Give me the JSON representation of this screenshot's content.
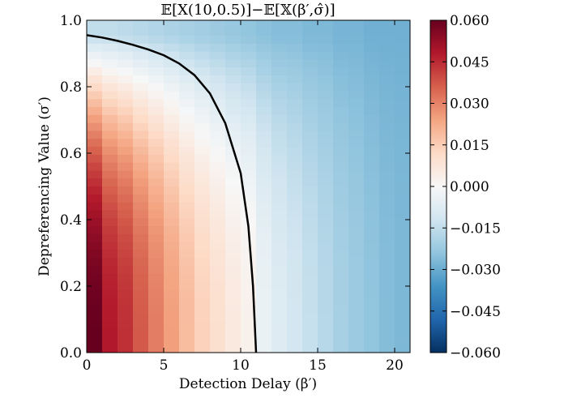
{
  "chart_data": {
    "type": "heatmap",
    "title": "𝔼[X(10,0.5)]−𝔼[𝕏(β′,σ̂)]",
    "xlabel": "Detection Delay (β′)",
    "ylabel": "Depreferencing Value (σ′)",
    "xlim": [
      0,
      21
    ],
    "ylim": [
      0,
      1
    ],
    "x_ticks": [
      "0",
      "5",
      "10",
      "15",
      "20"
    ],
    "y_ticks": [
      "0.0",
      "0.2",
      "0.4",
      "0.6",
      "0.8",
      "1.0"
    ],
    "colorbar": {
      "min": -0.06,
      "max": 0.06,
      "colormap": "RdBu_r",
      "ticks": [
        "0.060",
        "0.045",
        "0.030",
        "0.015",
        "0.000",
        "−0.015",
        "−0.030",
        "−0.045",
        "−0.060"
      ]
    },
    "columns": {
      "beta_start": 0,
      "beta_step": 1,
      "sigma_max": 0.955,
      "value_at_sigma0": [
        0.06,
        0.048,
        0.044,
        0.037,
        0.031,
        0.025,
        0.019,
        0.014,
        0.01,
        0.006,
        0.003,
        -0.004,
        -0.008,
        -0.011,
        -0.014,
        -0.017,
        -0.02,
        -0.022,
        -0.024,
        -0.026,
        -0.027
      ],
      "value_at_top": [
        -0.015,
        -0.015,
        -0.016,
        -0.017,
        -0.018,
        -0.019,
        -0.02,
        -0.021,
        -0.022,
        -0.023,
        -0.024,
        -0.025,
        -0.026,
        -0.026,
        -0.027,
        -0.027,
        -0.028,
        -0.028,
        -0.029,
        -0.029,
        -0.029
      ]
    },
    "contour": {
      "level": 0,
      "points": [
        [
          0,
          0.955
        ],
        [
          1,
          0.948
        ],
        [
          2,
          0.938
        ],
        [
          3,
          0.926
        ],
        [
          4,
          0.912
        ],
        [
          5,
          0.895
        ],
        [
          6,
          0.87
        ],
        [
          7,
          0.835
        ],
        [
          8,
          0.78
        ],
        [
          9,
          0.69
        ],
        [
          10,
          0.54
        ],
        [
          10.5,
          0.38
        ],
        [
          10.8,
          0.2
        ],
        [
          11,
          0.0
        ]
      ]
    },
    "grid": false,
    "legend": "none"
  }
}
